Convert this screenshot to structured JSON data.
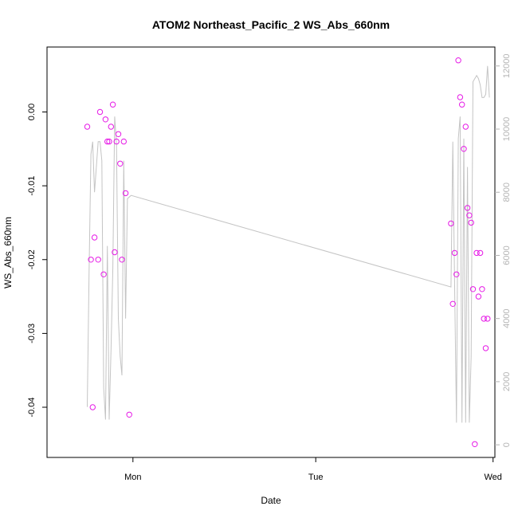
{
  "chart_data": {
    "type": "scatter",
    "title": "ATOM2 Northeast_Pacific_2 WS_Abs_660nm",
    "xlabel": "Date",
    "ylabel": "WS_Abs_660nm",
    "xlim": [
      -1.47,
      0.98
    ],
    "ylim": [
      -0.0468,
      0.0088
    ],
    "x_ticks": [
      {
        "value": -1.0,
        "label": "Mon"
      },
      {
        "value": 0.0,
        "label": "Tue"
      },
      {
        "value": 0.97,
        "label": "Wed"
      }
    ],
    "y_ticks": [
      {
        "value": -0.04,
        "label": "-0.04"
      },
      {
        "value": -0.03,
        "label": "-0.03"
      },
      {
        "value": -0.02,
        "label": "-0.02"
      },
      {
        "value": -0.01,
        "label": "-0.01"
      },
      {
        "value": 0.0,
        "label": "0.00"
      }
    ],
    "y2lim": [
      -400,
      12600
    ],
    "y2_ticks": [
      {
        "value": 0,
        "label": "0"
      },
      {
        "value": 2000,
        "label": "2000"
      },
      {
        "value": 4000,
        "label": "4000"
      },
      {
        "value": 6000,
        "label": "6000"
      },
      {
        "value": 8000,
        "label": "8000"
      },
      {
        "value": 10000,
        "label": "10000"
      },
      {
        "value": 12000,
        "label": "12000"
      }
    ],
    "grid": false,
    "colors": {
      "points": "#e619e6",
      "line": "#c4c4c4",
      "axis": "#000000",
      "right_axis": "#b4b4b4"
    },
    "series": [
      {
        "type": "scatter",
        "x": [
          -1.25,
          -1.23,
          -1.22,
          -1.21,
          -1.19,
          -1.18,
          -1.16,
          -1.15,
          -1.14,
          -1.13,
          -1.12,
          -1.11,
          -1.1,
          -1.09,
          -1.08,
          -1.07,
          -1.06,
          -1.05,
          -1.04,
          -1.02,
          0.74,
          0.75,
          0.76,
          0.77,
          0.78,
          0.79,
          0.8,
          0.81,
          0.82,
          0.83,
          0.84,
          0.85,
          0.86,
          0.87,
          0.88,
          0.89,
          0.9,
          0.91,
          0.92,
          0.93,
          0.94
        ],
        "y": [
          -0.002,
          -0.02,
          -0.04,
          -0.017,
          -0.02,
          0.0,
          -0.022,
          -0.001,
          -0.004,
          -0.004,
          -0.002,
          0.001,
          -0.019,
          -0.004,
          -0.003,
          -0.007,
          -0.02,
          -0.004,
          -0.011,
          -0.041,
          -0.0151,
          -0.026,
          -0.0191,
          -0.022,
          0.007,
          0.002,
          0.001,
          -0.005,
          -0.002,
          -0.013,
          -0.014,
          -0.015,
          -0.024,
          -0.045,
          -0.0191,
          -0.025,
          -0.0191,
          -0.024,
          -0.028,
          -0.032,
          -0.028
        ]
      },
      {
        "type": "line",
        "axis": "right",
        "x": [
          -1.25,
          -1.24,
          -1.23,
          -1.22,
          -1.21,
          -1.2,
          -1.19,
          -1.18,
          -1.17,
          -1.16,
          -1.15,
          -1.14,
          -1.13,
          -1.12,
          -1.11,
          -1.1,
          -1.09,
          -1.08,
          -1.07,
          -1.06,
          -1.05,
          -1.04,
          -1.03,
          -1.01,
          0.74,
          0.75,
          0.76,
          0.77,
          0.78,
          0.79,
          0.8,
          0.81,
          0.82,
          0.83,
          0.84,
          0.85,
          0.86,
          0.87,
          0.88,
          0.89,
          0.9,
          0.91,
          0.92,
          0.93,
          0.94,
          0.95
        ],
        "y": [
          1200,
          5500,
          9200,
          9600,
          8000,
          8800,
          9600,
          9600,
          9000,
          1800,
          800,
          6300,
          800,
          3000,
          5600,
          10400,
          9500,
          4000,
          2800,
          2200,
          9000,
          4000,
          7800,
          7900,
          5000,
          9600,
          5000,
          700,
          9700,
          10400,
          700,
          9700,
          700,
          8800,
          700,
          2800,
          11500,
          11600,
          11700,
          11600,
          11400,
          11000,
          11000,
          11100,
          12000,
          11000
        ]
      }
    ]
  }
}
